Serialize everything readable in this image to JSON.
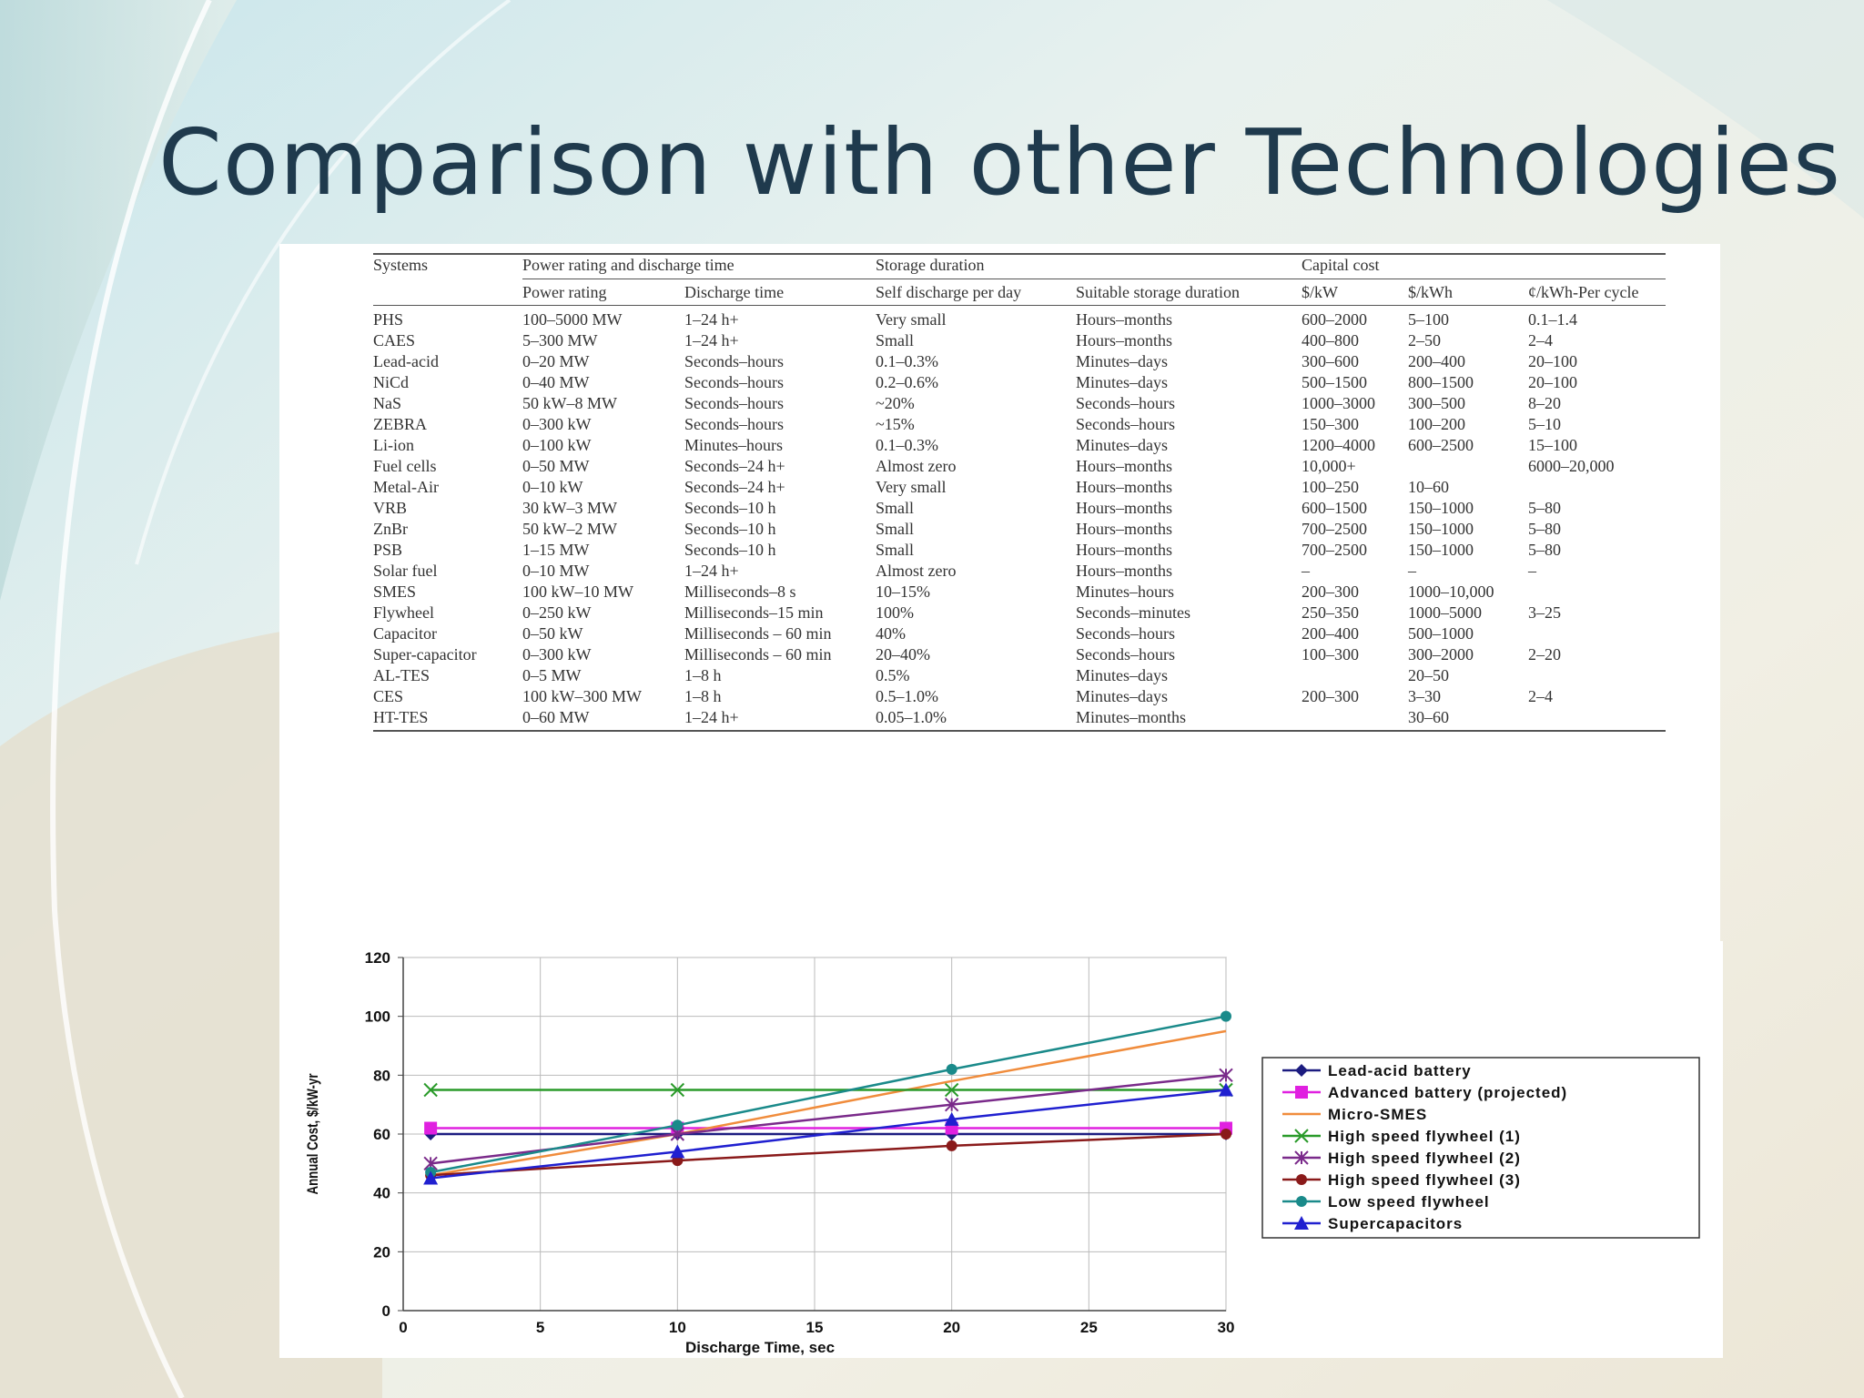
{
  "slide": {
    "title": "Comparison with other Technologies"
  },
  "table": {
    "group_headers": {
      "systems": "Systems",
      "power": "Power rating and discharge time",
      "storage": "Storage duration",
      "capital": "Capital cost"
    },
    "sub_headers": {
      "power_rating": "Power rating",
      "discharge_time": "Discharge time",
      "self_discharge": "Self discharge per day",
      "suitable_duration": "Suitable storage duration",
      "cost_kw": "$/kW",
      "cost_kwh": "$/kWh",
      "cost_cycle": "¢/kWh-Per cycle"
    },
    "rows": [
      [
        "PHS",
        "100–5000 MW",
        "1–24 h+",
        "Very small",
        "Hours–months",
        "600–2000",
        "5–100",
        "0.1–1.4"
      ],
      [
        "CAES",
        "5–300 MW",
        "1–24 h+",
        "Small",
        "Hours–months",
        "400–800",
        "2–50",
        "2–4"
      ],
      [
        "Lead-acid",
        "0–20 MW",
        "Seconds–hours",
        "0.1–0.3%",
        "Minutes–days",
        "300–600",
        "200–400",
        "20–100"
      ],
      [
        "NiCd",
        "0–40 MW",
        "Seconds–hours",
        "0.2–0.6%",
        "Minutes–days",
        "500–1500",
        "800–1500",
        "20–100"
      ],
      [
        "NaS",
        "50 kW–8 MW",
        "Seconds–hours",
        "~20%",
        "Seconds–hours",
        "1000–3000",
        "300–500",
        "8–20"
      ],
      [
        "ZEBRA",
        "0–300 kW",
        "Seconds–hours",
        "~15%",
        "Seconds–hours",
        "150–300",
        "100–200",
        "5–10"
      ],
      [
        "Li-ion",
        "0–100 kW",
        "Minutes–hours",
        "0.1–0.3%",
        "Minutes–days",
        "1200–4000",
        "600–2500",
        "15–100"
      ],
      [
        "Fuel cells",
        "0–50 MW",
        "Seconds–24 h+",
        "Almost zero",
        "Hours–months",
        "10,000+",
        "",
        "6000–20,000"
      ],
      [
        "Metal-Air",
        "0–10 kW",
        "Seconds–24 h+",
        "Very small",
        "Hours–months",
        "100–250",
        "10–60",
        ""
      ],
      [
        "VRB",
        "30 kW–3 MW",
        "Seconds–10 h",
        "Small",
        "Hours–months",
        "600–1500",
        "150–1000",
        "5–80"
      ],
      [
        "ZnBr",
        "50 kW–2 MW",
        "Seconds–10 h",
        "Small",
        "Hours–months",
        "700–2500",
        "150–1000",
        "5–80"
      ],
      [
        "PSB",
        "1–15 MW",
        "Seconds–10 h",
        "Small",
        "Hours–months",
        "700–2500",
        "150–1000",
        "5–80"
      ],
      [
        "Solar fuel",
        "0–10 MW",
        "1–24 h+",
        "Almost zero",
        "Hours–months",
        "–",
        "–",
        "–"
      ],
      [
        "SMES",
        "100 kW–10 MW",
        "Milliseconds–8 s",
        "10–15%",
        "Minutes–hours",
        "200–300",
        "1000–10,000",
        ""
      ],
      [
        "Flywheel",
        "0–250 kW",
        "Milliseconds–15 min",
        "100%",
        "Seconds–minutes",
        "250–350",
        "1000–5000",
        "3–25"
      ],
      [
        "Capacitor",
        "0–50 kW",
        "Milliseconds – 60 min",
        "40%",
        "Seconds–hours",
        "200–400",
        "500–1000",
        ""
      ],
      [
        "Super-capacitor",
        "0–300 kW",
        "Milliseconds – 60 min",
        "20–40%",
        "Seconds–hours",
        "100–300",
        "300–2000",
        "2–20"
      ],
      [
        "AL-TES",
        "0–5 MW",
        "1–8 h",
        "0.5%",
        "Minutes–days",
        "",
        "20–50",
        ""
      ],
      [
        "CES",
        "100 kW–300 MW",
        "1–8 h",
        "0.5–1.0%",
        "Minutes–days",
        "200–300",
        "3–30",
        "2–4"
      ],
      [
        "HT-TES",
        "0–60 MW",
        "1–24 h+",
        "0.05–1.0%",
        "Minutes–months",
        "",
        "30–60",
        ""
      ]
    ]
  },
  "chart_data": {
    "type": "line",
    "xlabel": "Discharge Time, sec",
    "ylabel": "Annual Cost, $/kW-yr",
    "xlim": [
      0,
      30
    ],
    "ylim": [
      0,
      120
    ],
    "xticks": [
      0,
      5,
      10,
      15,
      20,
      25,
      30
    ],
    "yticks": [
      0,
      20,
      40,
      60,
      80,
      100,
      120
    ],
    "grid": true,
    "legend_position": "right",
    "x": [
      1,
      10,
      20,
      30
    ],
    "series": [
      {
        "name": "Lead-acid battery",
        "values": [
          60,
          60,
          60,
          60
        ],
        "color": "#1c1c80",
        "marker": "diamond"
      },
      {
        "name": "Advanced battery (projected)",
        "values": [
          62,
          62,
          62,
          62
        ],
        "color": "#e020e0",
        "marker": "square"
      },
      {
        "name": "Micro-SMES",
        "values": [
          46,
          60,
          78,
          95
        ],
        "color": "#f08c3c",
        "marker": "none"
      },
      {
        "name": "High speed flywheel (1)",
        "values": [
          75,
          75,
          75,
          75
        ],
        "color": "#2a9a2a",
        "marker": "x"
      },
      {
        "name": "High speed flywheel (2)",
        "values": [
          50,
          60,
          70,
          80
        ],
        "color": "#7a2a8a",
        "marker": "star"
      },
      {
        "name": "High speed flywheel (3)",
        "values": [
          46,
          51,
          56,
          60
        ],
        "color": "#8a1a1a",
        "marker": "circle"
      },
      {
        "name": "Low speed flywheel",
        "values": [
          47,
          63,
          82,
          100
        ],
        "color": "#1a8a8a",
        "marker": "circle"
      },
      {
        "name": "Supercapacitors",
        "values": [
          45,
          54,
          65,
          75
        ],
        "color": "#2020d0",
        "marker": "triangle"
      }
    ]
  }
}
